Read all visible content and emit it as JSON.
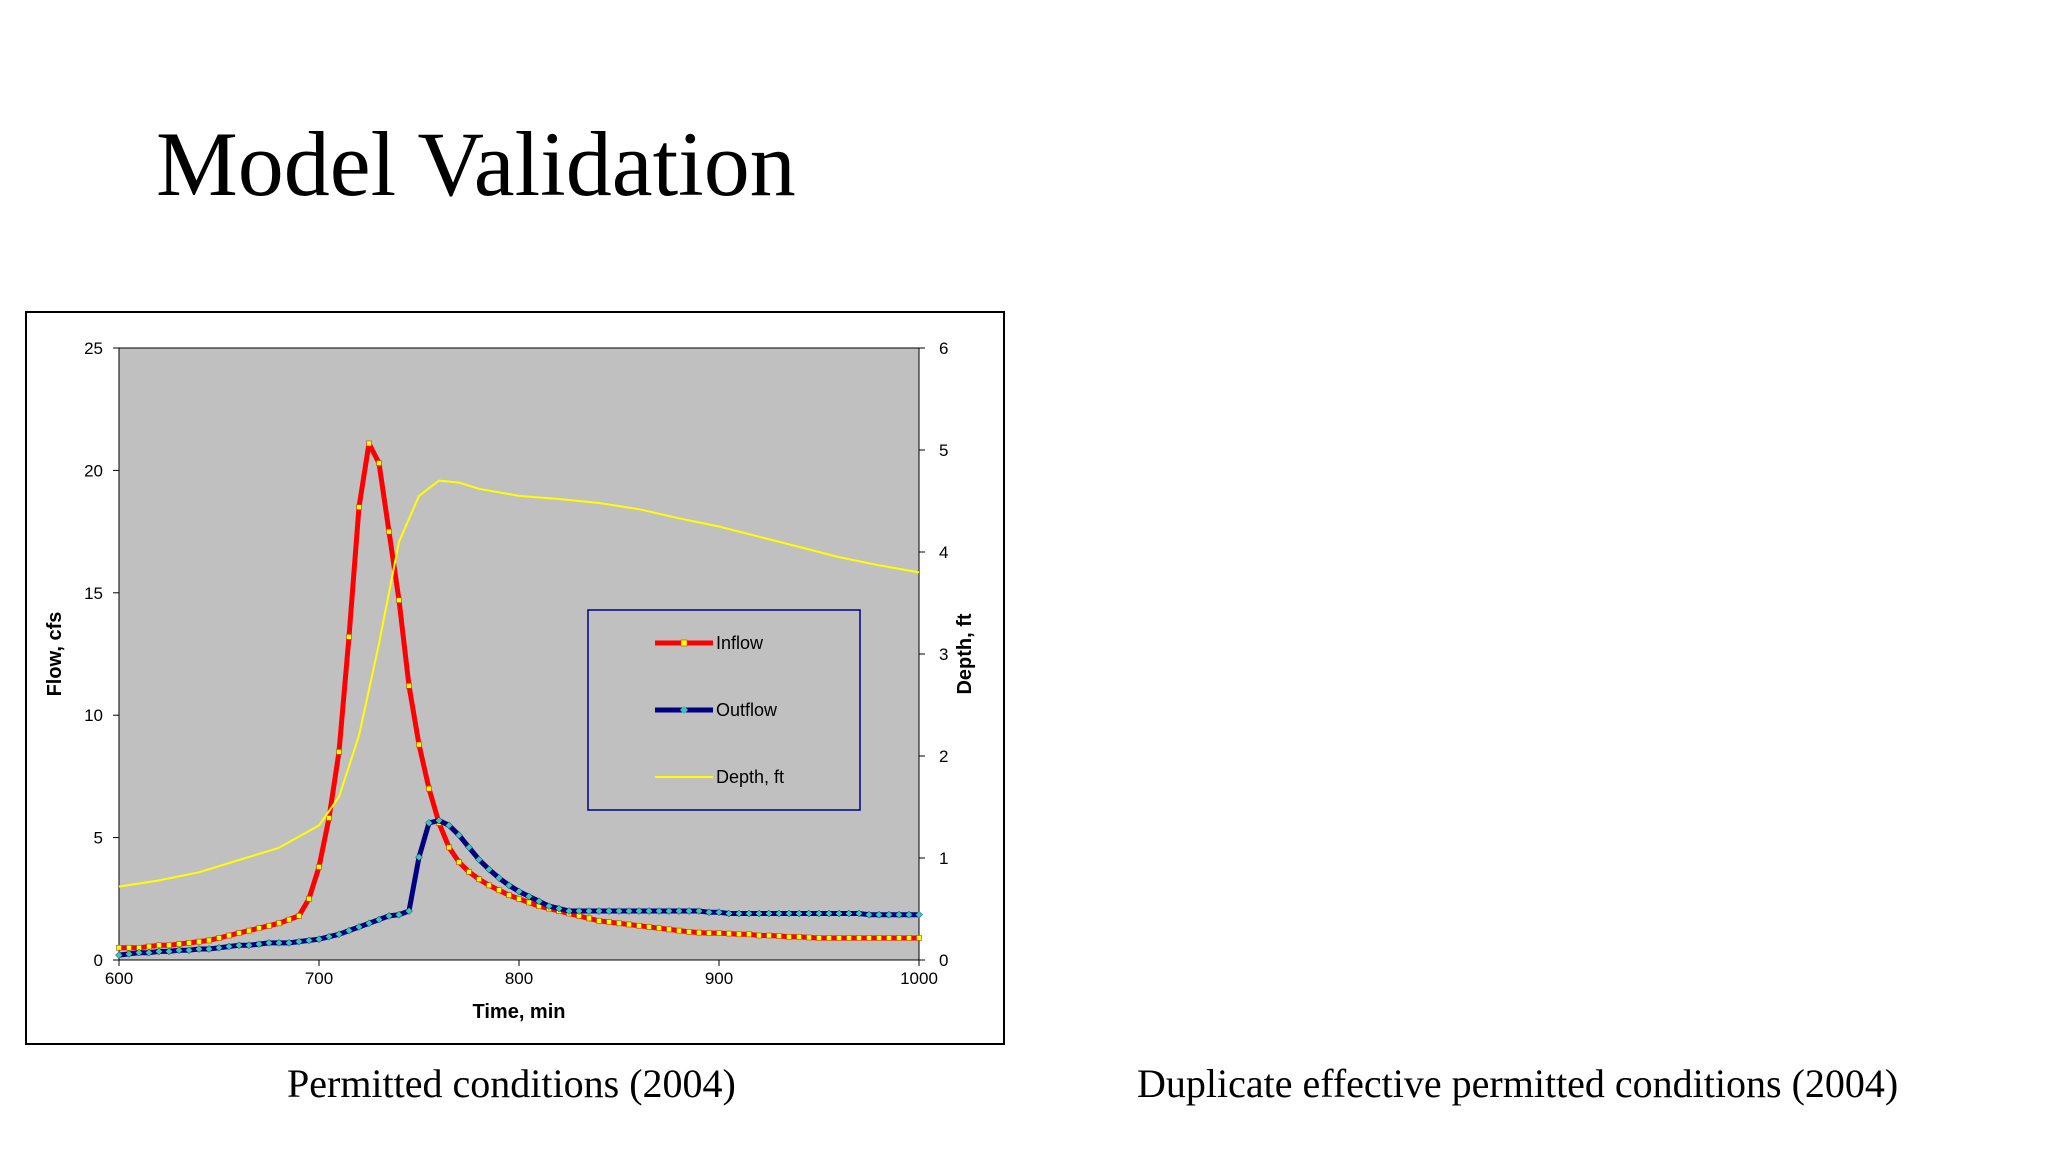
{
  "slide": {
    "title": "Model Validation",
    "caption_left": "Permitted conditions (2004)",
    "caption_right": "Duplicate effective permitted conditions (2004)"
  },
  "chart_data": {
    "type": "line",
    "title": "",
    "xlabel": "Time, min",
    "ylabel": "Flow, cfs",
    "y2label": "Depth, ft",
    "xlim": [
      600,
      1000
    ],
    "ylim": [
      0,
      25
    ],
    "y2lim": [
      0,
      6
    ],
    "xticks": [
      600,
      700,
      800,
      900,
      1000
    ],
    "yticks": [
      0,
      5,
      10,
      15,
      20,
      25
    ],
    "y2ticks": [
      0,
      1,
      2,
      3,
      4,
      5,
      6
    ],
    "grid": false,
    "legend_position": "center-right",
    "plot_background": "#c0c0c0",
    "series": [
      {
        "name": "Inflow",
        "axis": "left",
        "color": "#ff0000",
        "marker_color": "#ffff00",
        "x": [
          600,
          605,
          610,
          615,
          620,
          625,
          630,
          635,
          640,
          645,
          650,
          655,
          660,
          665,
          670,
          675,
          680,
          685,
          690,
          695,
          700,
          705,
          710,
          715,
          720,
          725,
          730,
          735,
          740,
          745,
          750,
          755,
          760,
          765,
          770,
          775,
          780,
          785,
          790,
          795,
          800,
          805,
          810,
          815,
          820,
          825,
          830,
          835,
          840,
          845,
          850,
          855,
          860,
          865,
          870,
          875,
          880,
          885,
          890,
          895,
          900,
          905,
          910,
          915,
          920,
          925,
          930,
          935,
          940,
          945,
          950,
          955,
          960,
          965,
          970,
          975,
          980,
          985,
          990,
          995,
          1000
        ],
        "values": [
          0.5,
          0.5,
          0.5,
          0.55,
          0.6,
          0.6,
          0.65,
          0.7,
          0.75,
          0.8,
          0.9,
          1.0,
          1.1,
          1.2,
          1.3,
          1.4,
          1.5,
          1.65,
          1.8,
          2.5,
          3.8,
          5.8,
          8.5,
          13.2,
          18.5,
          21.1,
          20.3,
          17.5,
          14.7,
          11.2,
          8.8,
          7.0,
          5.6,
          4.6,
          4.0,
          3.6,
          3.3,
          3.05,
          2.85,
          2.65,
          2.5,
          2.35,
          2.2,
          2.1,
          2.0,
          1.9,
          1.8,
          1.7,
          1.6,
          1.55,
          1.5,
          1.45,
          1.4,
          1.35,
          1.3,
          1.25,
          1.2,
          1.15,
          1.12,
          1.1,
          1.1,
          1.08,
          1.05,
          1.05,
          1.0,
          1.0,
          0.98,
          0.95,
          0.95,
          0.92,
          0.9,
          0.9,
          0.9,
          0.9,
          0.9,
          0.9,
          0.9,
          0.9,
          0.9,
          0.9,
          0.9
        ]
      },
      {
        "name": "Outflow",
        "axis": "left",
        "color": "#000080",
        "marker_color": "#40c0c0",
        "x": [
          600,
          605,
          610,
          615,
          620,
          625,
          630,
          635,
          640,
          645,
          650,
          655,
          660,
          665,
          670,
          675,
          680,
          685,
          690,
          695,
          700,
          705,
          710,
          715,
          720,
          725,
          730,
          735,
          740,
          745,
          750,
          755,
          760,
          765,
          770,
          775,
          780,
          785,
          790,
          795,
          800,
          805,
          810,
          815,
          820,
          825,
          830,
          835,
          840,
          845,
          850,
          855,
          860,
          865,
          870,
          875,
          880,
          885,
          890,
          895,
          900,
          905,
          910,
          915,
          920,
          925,
          930,
          935,
          940,
          945,
          950,
          955,
          960,
          965,
          970,
          975,
          980,
          985,
          990,
          995,
          1000
        ],
        "values": [
          0.2,
          0.25,
          0.3,
          0.3,
          0.35,
          0.35,
          0.4,
          0.4,
          0.45,
          0.45,
          0.5,
          0.55,
          0.6,
          0.6,
          0.65,
          0.7,
          0.7,
          0.7,
          0.75,
          0.8,
          0.85,
          0.95,
          1.05,
          1.2,
          1.35,
          1.5,
          1.65,
          1.8,
          1.85,
          2.0,
          4.2,
          5.6,
          5.7,
          5.5,
          5.1,
          4.6,
          4.1,
          3.7,
          3.35,
          3.05,
          2.8,
          2.6,
          2.4,
          2.2,
          2.1,
          2.0,
          2.0,
          2.0,
          2.0,
          2.0,
          2.0,
          2.0,
          2.0,
          2.0,
          2.0,
          2.0,
          2.0,
          2.0,
          2.0,
          1.95,
          1.95,
          1.9,
          1.9,
          1.9,
          1.9,
          1.9,
          1.9,
          1.9,
          1.9,
          1.9,
          1.9,
          1.9,
          1.9,
          1.9,
          1.9,
          1.85,
          1.85,
          1.85,
          1.85,
          1.85,
          1.85
        ]
      },
      {
        "name": "Depth, ft",
        "axis": "right",
        "color": "#ffff00",
        "x": [
          600,
          620,
          640,
          660,
          680,
          700,
          710,
          720,
          730,
          740,
          750,
          760,
          770,
          780,
          800,
          820,
          840,
          860,
          880,
          900,
          920,
          940,
          960,
          980,
          1000
        ],
        "values": [
          0.72,
          0.78,
          0.86,
          0.98,
          1.1,
          1.32,
          1.6,
          2.2,
          3.1,
          4.1,
          4.55,
          4.7,
          4.68,
          4.62,
          4.55,
          4.52,
          4.48,
          4.42,
          4.33,
          4.25,
          4.15,
          4.05,
          3.95,
          3.87,
          3.8
        ]
      }
    ]
  }
}
